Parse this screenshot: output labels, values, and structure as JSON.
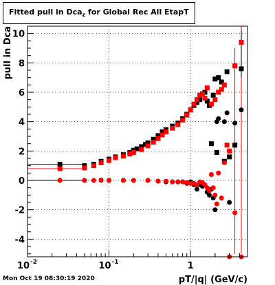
{
  "title": {
    "main": "Fitted pull in Dca",
    "sub": "z",
    "suffix": " for Global Rec All EtapT"
  },
  "footer": "Mon Oct 19 08:30:19 2020",
  "colors": {
    "series_a": "#000000",
    "series_b": "#ff0000",
    "frame": "#000000",
    "grid": "#000000"
  },
  "chart_data": {
    "type": "scatter",
    "xlabel": "pT/|q| (GeV/c)",
    "ylabel": "pull in Dca",
    "xscale": "log",
    "xlim": [
      0.01,
      5.0
    ],
    "ylim": [
      -5.2,
      10.5
    ],
    "grid": true,
    "xticks": [
      {
        "v": 0.01,
        "label": "10"
      },
      {
        "v": 0.1,
        "label": "10"
      },
      {
        "v": 1,
        "label": "1"
      }
    ],
    "xtick_exp": [
      "-2",
      "-1",
      ""
    ],
    "yticks": [
      -4,
      -2,
      0,
      2,
      4,
      6,
      8,
      10
    ],
    "series": [
      {
        "marker": "square",
        "color": "#000000",
        "points": [
          [
            0.025,
            1.1
          ],
          [
            0.05,
            1.0
          ],
          [
            0.065,
            1.1
          ],
          [
            0.08,
            1.3
          ],
          [
            0.1,
            1.45
          ],
          [
            0.12,
            1.6
          ],
          [
            0.15,
            1.75
          ],
          [
            0.18,
            1.9
          ],
          [
            0.2,
            2.05
          ],
          [
            0.22,
            2.15
          ],
          [
            0.25,
            2.3
          ],
          [
            0.28,
            2.45
          ],
          [
            0.3,
            2.55
          ],
          [
            0.35,
            2.8
          ],
          [
            0.4,
            3.05
          ],
          [
            0.45,
            3.3
          ],
          [
            0.5,
            3.45
          ],
          [
            0.6,
            3.7
          ],
          [
            0.7,
            3.9
          ],
          [
            0.8,
            4.2
          ],
          [
            0.9,
            4.5
          ],
          [
            1.0,
            4.8
          ],
          [
            1.1,
            5.1
          ],
          [
            1.2,
            5.3
          ],
          [
            1.3,
            5.5
          ],
          [
            1.4,
            5.9
          ],
          [
            1.5,
            6.0
          ],
          [
            1.6,
            5.4
          ],
          [
            1.7,
            5.1
          ],
          [
            1.8,
            2.5
          ],
          [
            1.9,
            5.8
          ],
          [
            2.0,
            6.9
          ],
          [
            2.1,
            1.9
          ],
          [
            2.2,
            7.0
          ],
          [
            2.4,
            6.7
          ],
          [
            2.6,
            1.3
          ],
          [
            2.8,
            7.4
          ],
          [
            3.0,
            1.6
          ],
          [
            3.5,
            2.4
          ],
          [
            4.2,
            7.6
          ]
        ]
      },
      {
        "marker": "circle",
        "color": "#000000",
        "points": [
          [
            0.025,
            0.0
          ],
          [
            0.05,
            0.0
          ],
          [
            0.08,
            0.02
          ],
          [
            0.1,
            0.0
          ],
          [
            0.15,
            0.0
          ],
          [
            0.2,
            0.0
          ],
          [
            0.3,
            0.0
          ],
          [
            0.4,
            -0.05
          ],
          [
            0.5,
            -0.1
          ],
          [
            0.6,
            -0.1
          ],
          [
            0.7,
            -0.1
          ],
          [
            0.8,
            -0.1
          ],
          [
            0.9,
            -0.2
          ],
          [
            1.0,
            -0.1
          ],
          [
            1.1,
            -0.3
          ],
          [
            1.2,
            -0.6
          ],
          [
            1.3,
            -0.3
          ],
          [
            1.4,
            -0.4
          ],
          [
            1.5,
            -0.3
          ],
          [
            1.6,
            -0.8
          ],
          [
            1.7,
            -1.0
          ],
          [
            1.8,
            -0.6
          ],
          [
            1.9,
            -1.2
          ],
          [
            2.0,
            -2.0
          ],
          [
            2.1,
            4.0
          ],
          [
            2.2,
            4.2
          ],
          [
            2.6,
            4.0
          ],
          [
            2.8,
            4.6
          ],
          [
            3.0,
            -1.5
          ],
          [
            3.5,
            3.9
          ],
          [
            4.2,
            4.8
          ]
        ]
      },
      {
        "marker": "square",
        "color": "#ff0000",
        "points": [
          [
            0.025,
            0.8
          ],
          [
            0.05,
            0.85
          ],
          [
            0.065,
            1.0
          ],
          [
            0.08,
            1.2
          ],
          [
            0.1,
            1.35
          ],
          [
            0.12,
            1.55
          ],
          [
            0.15,
            1.65
          ],
          [
            0.18,
            1.8
          ],
          [
            0.2,
            1.9
          ],
          [
            0.25,
            2.1
          ],
          [
            0.3,
            2.35
          ],
          [
            0.35,
            2.6
          ],
          [
            0.4,
            2.85
          ],
          [
            0.45,
            3.1
          ],
          [
            0.5,
            3.3
          ],
          [
            0.6,
            3.55
          ],
          [
            0.7,
            3.8
          ],
          [
            0.8,
            4.1
          ],
          [
            0.9,
            4.45
          ],
          [
            1.0,
            4.8
          ],
          [
            1.1,
            5.2
          ],
          [
            1.2,
            5.5
          ],
          [
            1.3,
            5.8
          ],
          [
            1.4,
            5.9
          ],
          [
            1.5,
            5.6
          ],
          [
            1.6,
            6.3
          ],
          [
            1.8,
            5.2
          ],
          [
            2.0,
            5.5
          ],
          [
            2.2,
            6.0
          ],
          [
            2.4,
            6.2
          ],
          [
            2.6,
            6.5
          ],
          [
            2.8,
            2.4
          ],
          [
            3.0,
            2.0
          ],
          [
            3.5,
            7.8
          ],
          [
            4.2,
            9.4
          ]
        ]
      },
      {
        "marker": "circle",
        "color": "#ff0000",
        "points": [
          [
            0.025,
            0.0
          ],
          [
            0.05,
            0.0
          ],
          [
            0.065,
            0.0
          ],
          [
            0.08,
            0.0
          ],
          [
            0.1,
            0.0
          ],
          [
            0.15,
            0.0
          ],
          [
            0.2,
            0.0
          ],
          [
            0.3,
            0.0
          ],
          [
            0.4,
            -0.05
          ],
          [
            0.5,
            -0.05
          ],
          [
            0.6,
            -0.1
          ],
          [
            0.7,
            -0.1
          ],
          [
            0.8,
            -0.1
          ],
          [
            0.9,
            -0.15
          ],
          [
            1.0,
            -0.2
          ],
          [
            1.1,
            -0.2
          ],
          [
            1.2,
            -0.3
          ],
          [
            1.3,
            -0.1
          ],
          [
            1.4,
            -0.15
          ],
          [
            1.5,
            -0.3
          ],
          [
            1.6,
            -0.5
          ],
          [
            1.7,
            -0.7
          ],
          [
            1.8,
            0.4
          ],
          [
            1.9,
            -0.5
          ],
          [
            2.0,
            -1.0
          ],
          [
            2.1,
            -1.6
          ],
          [
            2.2,
            0.5
          ],
          [
            2.4,
            -1.2
          ],
          [
            2.6,
            1.2
          ],
          [
            3.0,
            -5.2
          ],
          [
            3.5,
            -2.2
          ],
          [
            4.2,
            -5.2
          ]
        ]
      }
    ]
  }
}
